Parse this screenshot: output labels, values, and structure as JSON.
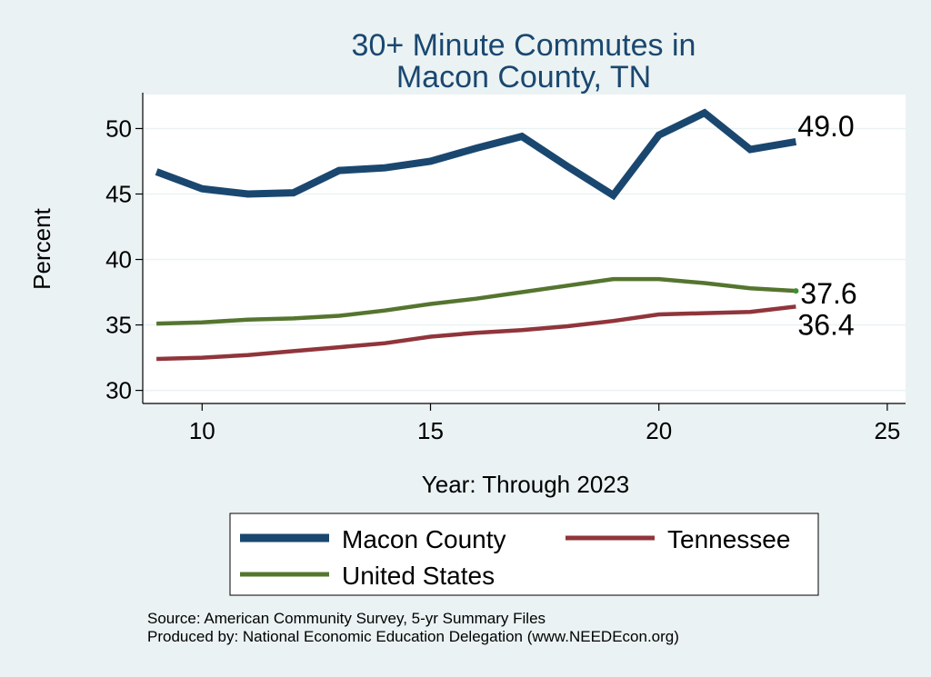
{
  "chart_data": {
    "type": "line",
    "title": [
      "30+ Minute Commutes in",
      "Macon County, TN"
    ],
    "xlabel": "Year: Through 2023",
    "ylabel": "Percent",
    "xlim": [
      8.7,
      25.4
    ],
    "ylim": [
      29.0,
      52.6
    ],
    "xticks": [
      10,
      15,
      20,
      25
    ],
    "yticks": [
      30,
      35,
      40,
      45,
      50
    ],
    "grid": true,
    "legend_position": "bottom",
    "series": [
      {
        "name": "Macon County",
        "color": "#1a476f",
        "x": [
          9,
          10,
          11,
          12,
          13,
          14,
          15,
          16,
          17,
          18,
          19,
          20,
          21,
          22,
          23
        ],
        "values": [
          46.7,
          45.4,
          45.0,
          45.1,
          46.8,
          47.0,
          47.5,
          48.5,
          49.4,
          47.1,
          44.9,
          49.5,
          51.2,
          48.4,
          49.0
        ],
        "end_label": "49.0"
      },
      {
        "name": "Tennessee",
        "color": "#90353b",
        "x": [
          9,
          10,
          11,
          12,
          13,
          14,
          15,
          16,
          17,
          18,
          19,
          20,
          21,
          22,
          23
        ],
        "values": [
          32.4,
          32.5,
          32.7,
          33.0,
          33.3,
          33.6,
          34.1,
          34.4,
          34.6,
          34.9,
          35.3,
          35.8,
          35.9,
          36.0,
          36.4
        ],
        "end_label": "36.4"
      },
      {
        "name": "United States",
        "color": "#55752f",
        "x": [
          9,
          10,
          11,
          12,
          13,
          14,
          15,
          16,
          17,
          18,
          19,
          20,
          21,
          22,
          23
        ],
        "values": [
          35.1,
          35.2,
          35.4,
          35.5,
          35.7,
          36.1,
          36.6,
          37.0,
          37.5,
          38.0,
          38.5,
          38.5,
          38.2,
          37.8,
          37.6
        ],
        "end_label": "37.6"
      }
    ],
    "legend": {
      "items": [
        "Macon County",
        "Tennessee",
        "United States"
      ]
    }
  },
  "source": {
    "line1": "Source: American Community Survey, 5-yr Summary Files",
    "line2": "Produced by: National Economic Education Delegation (www.NEEDEcon.org)"
  },
  "colors": {
    "background": "#eaf2f3",
    "plot_background": "#ffffff",
    "title": "#1a476f",
    "grid": "#eaf2f3"
  }
}
